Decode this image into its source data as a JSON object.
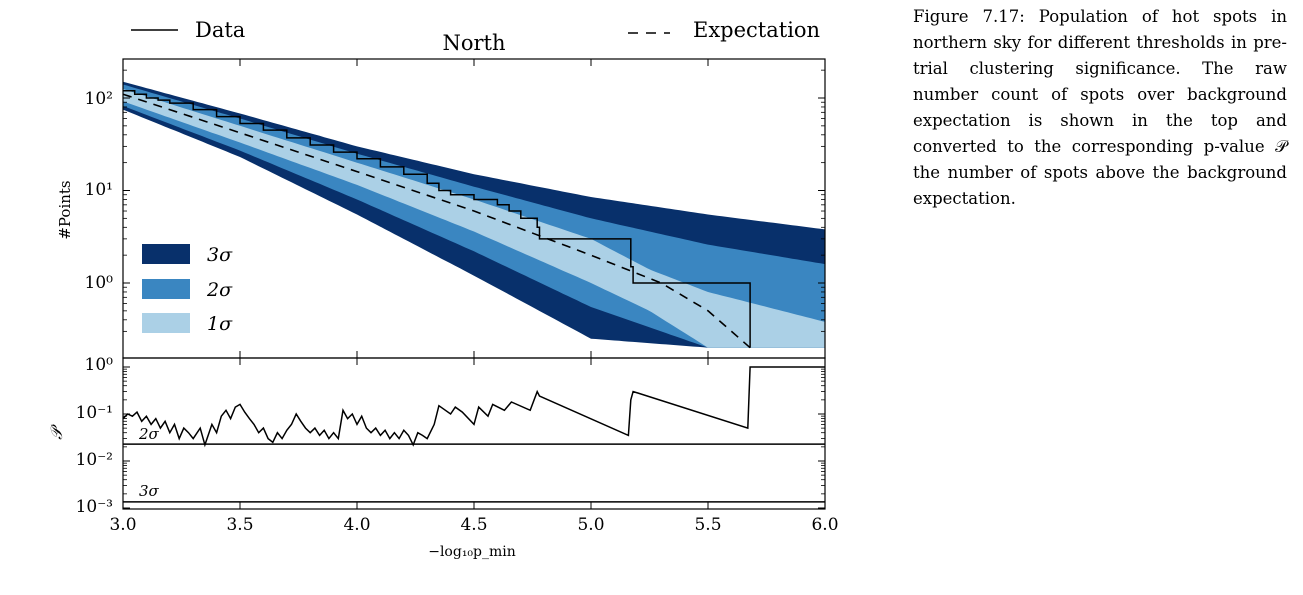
{
  "caption": {
    "label": "Figure 7.17:",
    "text": "Population of hot spots in northern sky for different thresholds in pre-trial clustering significance. The raw number count of spots over background expectation is shown in the top and converted to the corresponding p-value 𝒫 the number of spots above the background expectation."
  },
  "colors": {
    "band_3sigma": "#08306b",
    "band_2sigma": "#3a86c1",
    "band_1sigma": "#abd0e6",
    "data_line": "#000000",
    "expectation_line": "#000000"
  },
  "chart_data": [
    {
      "type": "line",
      "title": "North",
      "xlabel": "",
      "ylabel": "#Points",
      "y_scale": "log",
      "xlim": [
        3.0,
        6.0
      ],
      "ylim": [
        0.2,
        250
      ],
      "y_ticks": [
        "10⁰",
        "10¹",
        "10²"
      ],
      "legend_top": {
        "data": "Data",
        "expectation": "Expectation"
      },
      "legend_bands": [
        {
          "label": "3σ",
          "color": "#08306b"
        },
        {
          "label": "2σ",
          "color": "#3a86c1"
        },
        {
          "label": "1σ",
          "color": "#abd0e6"
        }
      ],
      "expectation": {
        "name": "Expectation",
        "x": [
          3.0,
          3.5,
          4.0,
          4.5,
          5.0,
          5.3,
          5.5,
          5.68
        ],
        "y": [
          110,
          42,
          16,
          6.0,
          2.0,
          1.0,
          0.5,
          0.2
        ]
      },
      "bands": [
        {
          "name": "3σ",
          "x": [
            3.0,
            3.5,
            4.0,
            4.5,
            5.0,
            5.5,
            6.0
          ],
          "lower": [
            75,
            23,
            5.5,
            1.2,
            0.25,
            0.2,
            0.2
          ],
          "upper": [
            150,
            68,
            30,
            15,
            8.5,
            5.5,
            3.8
          ]
        },
        {
          "name": "2σ",
          "x": [
            3.0,
            3.5,
            4.0,
            4.5,
            5.0,
            5.5,
            6.0
          ],
          "lower": [
            82,
            27,
            8.0,
            2.2,
            0.55,
            0.2,
            0.2
          ],
          "upper": [
            140,
            60,
            25,
            11,
            5.0,
            2.6,
            1.6
          ]
        },
        {
          "name": "1σ",
          "x": [
            3.0,
            3.5,
            4.0,
            4.5,
            5.0,
            5.25,
            5.5,
            6.0
          ],
          "lower": [
            92,
            33,
            11.5,
            3.6,
            1.0,
            0.5,
            0.2,
            0.2
          ],
          "upper": [
            125,
            50,
            20,
            8.0,
            3.0,
            1.4,
            0.8,
            0.38
          ]
        }
      ],
      "data_line": {
        "name": "Data",
        "x": [
          3.0,
          3.05,
          3.1,
          3.15,
          3.2,
          3.3,
          3.4,
          3.5,
          3.6,
          3.7,
          3.8,
          3.9,
          4.0,
          4.1,
          4.2,
          4.3,
          4.35,
          4.4,
          4.5,
          4.6,
          4.65,
          4.7,
          4.77,
          4.77,
          4.78,
          4.78,
          4.8,
          5.16,
          5.17,
          5.17,
          5.18,
          5.18,
          5.2,
          5.68,
          5.68
        ],
        "y": [
          120,
          110,
          100,
          95,
          88,
          75,
          63,
          53,
          45,
          37,
          31,
          26,
          22,
          18,
          15,
          12,
          10,
          9,
          8,
          7,
          6,
          5,
          5,
          4,
          4,
          3,
          3,
          3,
          2,
          1.5,
          1.5,
          1,
          1,
          1,
          0.2
        ]
      }
    },
    {
      "type": "line",
      "title": "",
      "xlabel": "−log₁₀p_min",
      "ylabel": "𝒫",
      "y_scale": "log",
      "xlim": [
        3.0,
        6.0
      ],
      "ylim": [
        0.0008,
        1.3
      ],
      "x_ticks": [
        "3.0",
        "3.5",
        "4.0",
        "4.5",
        "5.0",
        "5.5",
        "6.0"
      ],
      "y_ticks": [
        "10⁰",
        "10⁻¹",
        "10⁻²",
        "10⁻³"
      ],
      "threshold_lines": [
        {
          "label": "2σ",
          "value": 0.0228
        },
        {
          "label": "3σ",
          "value": 0.00135
        }
      ],
      "data_line": {
        "name": "P",
        "x": [
          3.0,
          3.02,
          3.04,
          3.06,
          3.08,
          3.1,
          3.12,
          3.14,
          3.16,
          3.18,
          3.2,
          3.22,
          3.24,
          3.26,
          3.28,
          3.3,
          3.33,
          3.35,
          3.38,
          3.4,
          3.42,
          3.44,
          3.46,
          3.48,
          3.5,
          3.52,
          3.54,
          3.56,
          3.58,
          3.6,
          3.62,
          3.64,
          3.66,
          3.68,
          3.7,
          3.72,
          3.74,
          3.76,
          3.78,
          3.8,
          3.82,
          3.84,
          3.86,
          3.88,
          3.9,
          3.92,
          3.94,
          3.96,
          3.98,
          4.0,
          4.02,
          4.04,
          4.06,
          4.08,
          4.1,
          4.12,
          4.14,
          4.16,
          4.18,
          4.2,
          4.22,
          4.24,
          4.26,
          4.28,
          4.3,
          4.33,
          4.35,
          4.4,
          4.42,
          4.45,
          4.5,
          4.52,
          4.56,
          4.58,
          4.63,
          4.66,
          4.74,
          4.77,
          4.78,
          5.16,
          5.17,
          5.18,
          5.2,
          5.67,
          5.68,
          5.68,
          6.0
        ],
        "y": [
          0.08,
          0.1,
          0.09,
          0.11,
          0.07,
          0.09,
          0.06,
          0.08,
          0.05,
          0.07,
          0.04,
          0.06,
          0.03,
          0.05,
          0.04,
          0.03,
          0.05,
          0.022,
          0.06,
          0.04,
          0.09,
          0.12,
          0.08,
          0.14,
          0.16,
          0.11,
          0.08,
          0.06,
          0.04,
          0.05,
          0.03,
          0.025,
          0.04,
          0.03,
          0.045,
          0.06,
          0.1,
          0.07,
          0.05,
          0.04,
          0.05,
          0.035,
          0.045,
          0.03,
          0.04,
          0.03,
          0.12,
          0.08,
          0.1,
          0.06,
          0.09,
          0.05,
          0.04,
          0.05,
          0.035,
          0.045,
          0.03,
          0.04,
          0.03,
          0.045,
          0.035,
          0.022,
          0.04,
          0.035,
          0.03,
          0.06,
          0.15,
          0.1,
          0.14,
          0.11,
          0.06,
          0.14,
          0.09,
          0.16,
          0.12,
          0.18,
          0.12,
          0.3,
          0.24,
          0.035,
          0.2,
          0.3,
          0.28,
          0.05,
          1.0,
          1.0,
          1.0
        ]
      }
    }
  ]
}
